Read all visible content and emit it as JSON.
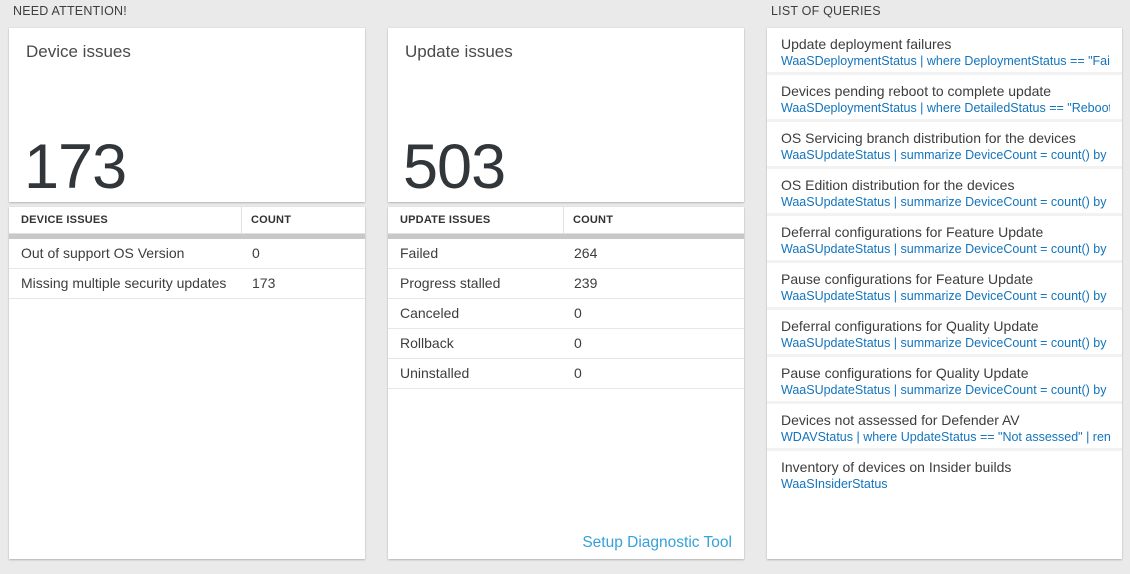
{
  "colors": {
    "page_bg": "#eaeaea",
    "tile_bg": "#ffffff",
    "number_text": "#31363b",
    "scrollbar": "#c8c8c8",
    "accent_link": "#36a1da",
    "query_link": "#1374bc"
  },
  "need_attention": {
    "header": "NEED ATTENTION!",
    "device_tile": {
      "title": "Device issues",
      "count": "173",
      "table": {
        "headers": [
          "DEVICE ISSUES",
          "COUNT"
        ],
        "rows": [
          {
            "label": "Out of support OS Version",
            "count": "0"
          },
          {
            "label": "Missing multiple security updates",
            "count": "173"
          }
        ]
      }
    },
    "update_tile": {
      "title": "Update issues",
      "count": "503",
      "table": {
        "headers": [
          "UPDATE ISSUES",
          "COUNT"
        ],
        "rows": [
          {
            "label": "Failed",
            "count": "264"
          },
          {
            "label": "Progress stalled",
            "count": "239"
          },
          {
            "label": "Canceled",
            "count": "0"
          },
          {
            "label": "Rollback",
            "count": "0"
          },
          {
            "label": "Uninstalled",
            "count": "0"
          }
        ]
      },
      "link_label": "Setup Diagnostic Tool"
    }
  },
  "query_panel": {
    "header": "LIST OF QUERIES",
    "queries": [
      {
        "title": "Update deployment failures",
        "query": "WaaSDeploymentStatus | where DeploymentStatus == \"Failed\" |..."
      },
      {
        "title": "Devices pending reboot to complete update",
        "query": "WaaSDeploymentStatus | where DetailedStatus == \"Reboot pend..."
      },
      {
        "title": "OS Servicing branch distribution for the devices",
        "query": "WaaSUpdateStatus | summarize DeviceCount = count() by OSSer..."
      },
      {
        "title": "OS Edition distribution for the devices",
        "query": "WaaSUpdateStatus | summarize DeviceCount = count() by OSEdit..."
      },
      {
        "title": "Deferral configurations for Feature Update",
        "query": "WaaSUpdateStatus | summarize DeviceCount = count() by Featur..."
      },
      {
        "title": "Pause configurations for Feature Update",
        "query": "WaaSUpdateStatus | summarize DeviceCount = count() by Featur..."
      },
      {
        "title": "Deferral configurations for Quality Update",
        "query": "WaaSUpdateStatus | summarize DeviceCount = count() by Qualit..."
      },
      {
        "title": "Pause configurations for Quality Update",
        "query": "WaaSUpdateStatus | summarize DeviceCount = count() by Qualit..."
      },
      {
        "title": "Devices not assessed for Defender AV",
        "query": "WDAVStatus | where UpdateStatus == \"Not assessed\" | render ta..."
      },
      {
        "title": "Inventory of devices on Insider builds",
        "query": "WaaSInsiderStatus"
      }
    ]
  }
}
